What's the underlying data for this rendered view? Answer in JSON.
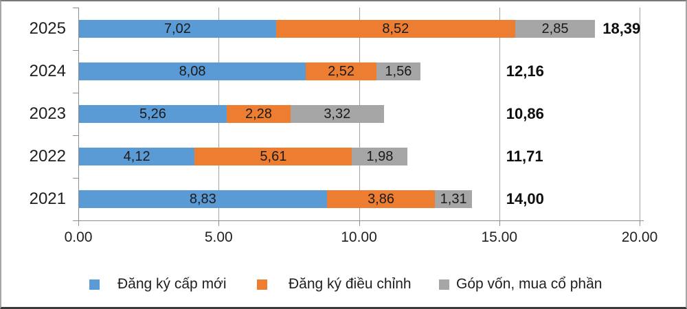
{
  "chart_data": {
    "type": "bar",
    "orientation": "horizontal",
    "stacked": true,
    "grid": true,
    "legend_position": "bottom",
    "categories": [
      "2025",
      "2024",
      "2023",
      "2022",
      "2021"
    ],
    "series": [
      {
        "name": "Đăng ký cấp mới",
        "color": "#5B9BD5",
        "values": [
          7.02,
          8.08,
          5.26,
          4.12,
          8.83
        ],
        "labels": [
          "7,02",
          "8,08",
          "5,26",
          "4,12",
          "8,83"
        ]
      },
      {
        "name": "Đăng ký điều chỉnh",
        "color": "#ED7D31",
        "values": [
          8.52,
          2.52,
          2.28,
          5.61,
          3.86
        ],
        "labels": [
          "8,52",
          "2,52",
          "2,28",
          "5,61",
          "3,86"
        ]
      },
      {
        "name": "Góp vốn, mua cổ phần",
        "color": "#A6A6A6",
        "values": [
          2.85,
          1.56,
          3.32,
          1.98,
          1.31
        ],
        "labels": [
          "2,85",
          "1,56",
          "3,32",
          "1,98",
          "1,31"
        ]
      }
    ],
    "totals": [
      "18,39",
      "12,16",
      "10,86",
      "11,71",
      "14,00"
    ],
    "total_values": [
      18.39,
      12.16,
      10.86,
      11.71,
      14.0
    ],
    "xlim": [
      0,
      20
    ],
    "x_ticks": [
      {
        "value": 0,
        "label": "0.00"
      },
      {
        "value": 5,
        "label": "5.00"
      },
      {
        "value": 10,
        "label": "10.00"
      },
      {
        "value": 15,
        "label": "15.00"
      },
      {
        "value": 20,
        "label": "20.00"
      }
    ]
  }
}
